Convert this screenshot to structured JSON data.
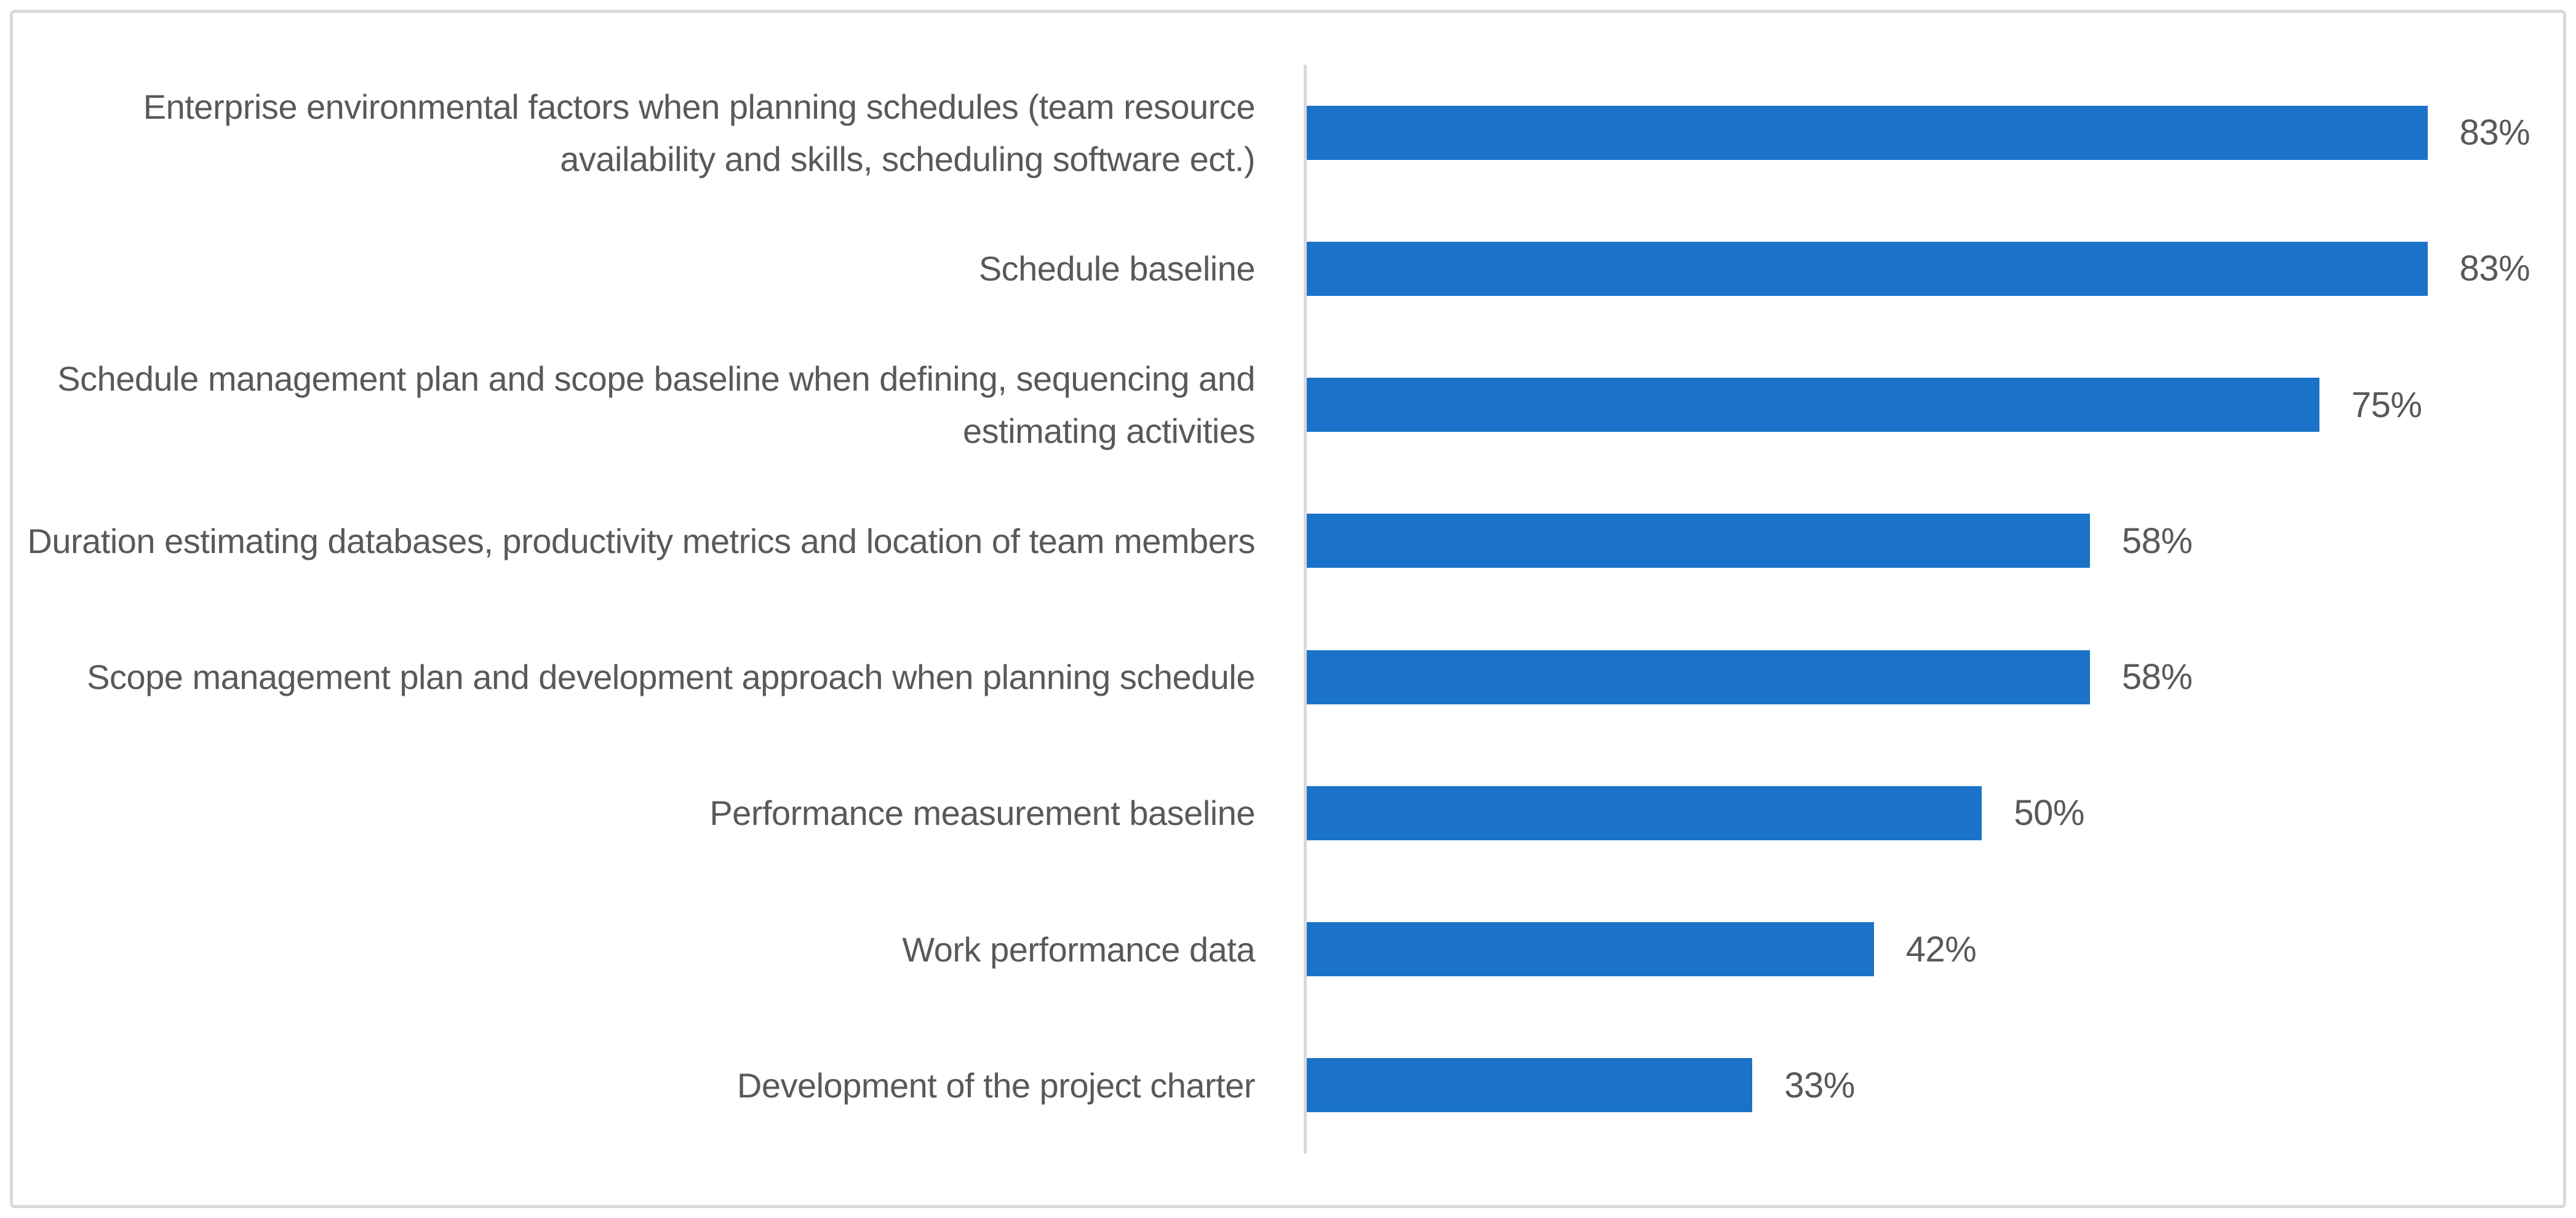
{
  "chart_data": {
    "type": "bar",
    "orientation": "horizontal",
    "title": "",
    "xlabel": "",
    "ylabel": "",
    "categories": [
      "Enterprise environmental factors when planning schedules (team resource availability and skills, scheduling software ect.)",
      "Schedule baseline",
      "Schedule management plan and scope baseline when defining, sequencing and estimating activities",
      "Duration estimating databases, productivity metrics and location of team members",
      "Scope management plan and development approach when planning schedule",
      "Performance measurement baseline",
      "Work performance data",
      "Development of the project charter"
    ],
    "values": [
      83,
      83,
      75,
      58,
      58,
      50,
      42,
      33
    ],
    "value_labels": [
      "83%",
      "83%",
      "75%",
      "58%",
      "58%",
      "50%",
      "42%",
      "33%"
    ],
    "xlim": [
      0,
      94
    ],
    "grid": false,
    "legend": null,
    "data_labels_position": "outside-end",
    "colors": {
      "bar": "#1a73c8",
      "text": "#595959",
      "axis_line": "#d9d9d9",
      "frame_border": "#d9d9d9",
      "background": "#ffffff"
    }
  }
}
